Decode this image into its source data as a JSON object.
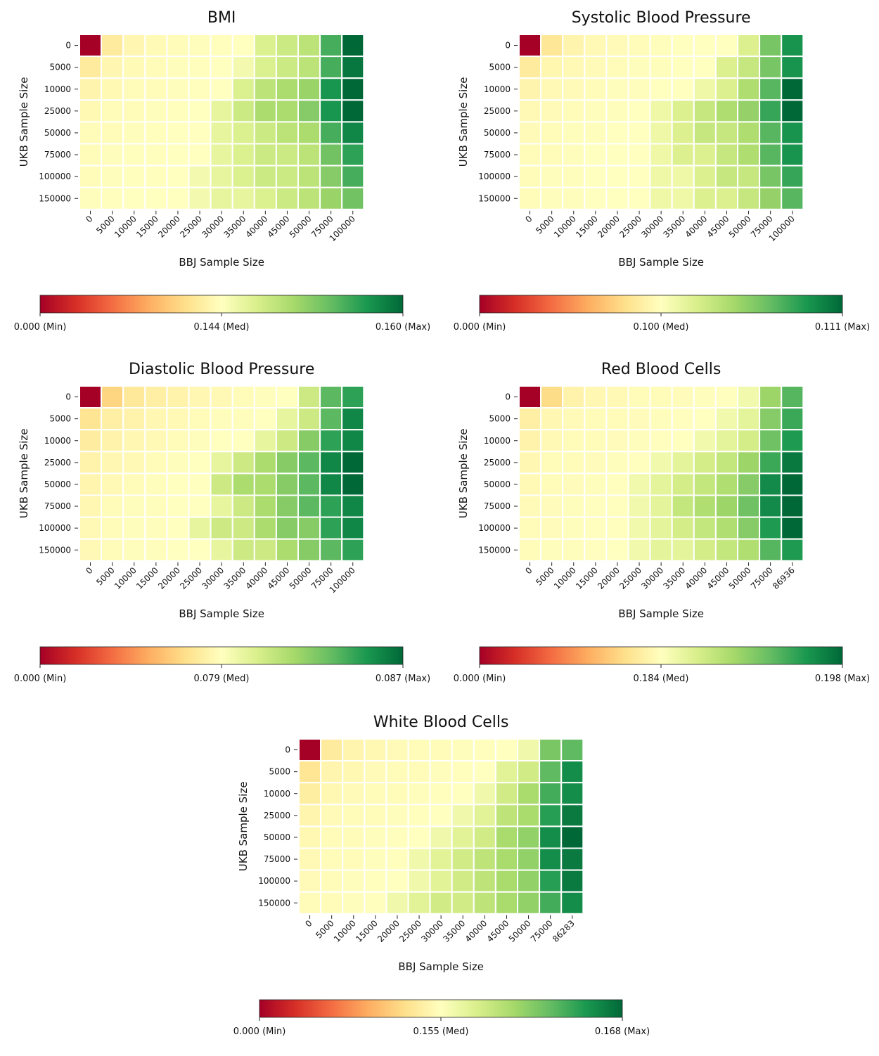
{
  "chart_data": [
    {
      "type": "heatmap",
      "title": "BMI",
      "xlabel": "BBJ Sample Size",
      "ylabel": "UKB Sample Size",
      "x_categories": [
        "0",
        "5000",
        "10000",
        "15000",
        "20000",
        "25000",
        "30000",
        "35000",
        "40000",
        "45000",
        "50000",
        "75000",
        "100000"
      ],
      "y_categories": [
        "0",
        "5000",
        "10000",
        "25000",
        "50000",
        "75000",
        "100000",
        "150000"
      ],
      "colorscale": {
        "min": 0.0,
        "median": 0.144,
        "max": 0.16,
        "tick_labels": [
          "0.000 (Min)",
          "0.144 (Med)",
          "0.160 (Max)"
        ]
      },
      "values": [
        [
          0.0,
          0.125,
          0.136,
          0.139,
          0.141,
          0.142,
          0.143,
          0.144,
          0.147,
          0.148,
          0.149,
          0.155,
          0.16
        ],
        [
          0.125,
          0.136,
          0.139,
          0.14,
          0.142,
          0.143,
          0.144,
          0.145,
          0.147,
          0.148,
          0.149,
          0.155,
          0.159
        ],
        [
          0.134,
          0.138,
          0.14,
          0.141,
          0.142,
          0.143,
          0.144,
          0.147,
          0.149,
          0.15,
          0.151,
          0.157,
          0.16
        ],
        [
          0.138,
          0.14,
          0.141,
          0.142,
          0.143,
          0.144,
          0.146,
          0.148,
          0.15,
          0.15,
          0.152,
          0.157,
          0.16
        ],
        [
          0.14,
          0.141,
          0.142,
          0.143,
          0.144,
          0.144,
          0.146,
          0.147,
          0.148,
          0.149,
          0.15,
          0.155,
          0.158
        ],
        [
          0.141,
          0.142,
          0.143,
          0.143,
          0.144,
          0.144,
          0.146,
          0.147,
          0.148,
          0.148,
          0.149,
          0.153,
          0.156
        ],
        [
          0.141,
          0.142,
          0.143,
          0.143,
          0.144,
          0.145,
          0.146,
          0.147,
          0.148,
          0.148,
          0.149,
          0.152,
          0.155
        ],
        [
          0.142,
          0.143,
          0.144,
          0.144,
          0.144,
          0.145,
          0.146,
          0.146,
          0.147,
          0.148,
          0.149,
          0.151,
          0.153
        ]
      ]
    },
    {
      "type": "heatmap",
      "title": "Systolic Blood Pressure",
      "xlabel": "BBJ Sample Size",
      "ylabel": "UKB Sample Size",
      "x_categories": [
        "0",
        "5000",
        "10000",
        "15000",
        "20000",
        "25000",
        "30000",
        "35000",
        "40000",
        "45000",
        "50000",
        "75000",
        "100000"
      ],
      "y_categories": [
        "0",
        "5000",
        "10000",
        "25000",
        "50000",
        "75000",
        "100000",
        "150000"
      ],
      "colorscale": {
        "min": 0.0,
        "median": 0.1,
        "max": 0.111,
        "tick_labels": [
          "0.000 (Min)",
          "0.100 (Med)",
          "0.111 (Max)"
        ]
      },
      "values": [
        [
          0.0,
          0.085,
          0.093,
          0.096,
          0.097,
          0.098,
          0.099,
          0.1,
          0.1,
          0.1,
          0.102,
          0.106,
          0.109
        ],
        [
          0.087,
          0.094,
          0.096,
          0.097,
          0.098,
          0.099,
          0.099,
          0.1,
          0.1,
          0.102,
          0.103,
          0.106,
          0.109
        ],
        [
          0.093,
          0.096,
          0.097,
          0.098,
          0.099,
          0.099,
          0.1,
          0.1,
          0.101,
          0.102,
          0.104,
          0.107,
          0.111
        ],
        [
          0.096,
          0.097,
          0.098,
          0.099,
          0.099,
          0.1,
          0.101,
          0.102,
          0.103,
          0.104,
          0.105,
          0.108,
          0.111
        ],
        [
          0.097,
          0.098,
          0.099,
          0.099,
          0.1,
          0.1,
          0.101,
          0.102,
          0.103,
          0.103,
          0.104,
          0.107,
          0.109
        ],
        [
          0.098,
          0.098,
          0.099,
          0.1,
          0.1,
          0.1,
          0.101,
          0.102,
          0.102,
          0.103,
          0.104,
          0.107,
          0.109
        ],
        [
          0.098,
          0.099,
          0.099,
          0.1,
          0.1,
          0.1,
          0.101,
          0.101,
          0.102,
          0.103,
          0.103,
          0.106,
          0.108
        ],
        [
          0.098,
          0.099,
          0.099,
          0.1,
          0.1,
          0.1,
          0.101,
          0.101,
          0.102,
          0.102,
          0.103,
          0.105,
          0.107
        ]
      ]
    },
    {
      "type": "heatmap",
      "title": "Diastolic Blood Pressure",
      "xlabel": "BBJ Sample Size",
      "ylabel": "UKB Sample Size",
      "x_categories": [
        "0",
        "5000",
        "10000",
        "15000",
        "20000",
        "25000",
        "30000",
        "35000",
        "40000",
        "45000",
        "50000",
        "75000",
        "100000"
      ],
      "y_categories": [
        "0",
        "5000",
        "10000",
        "25000",
        "50000",
        "75000",
        "100000",
        "150000"
      ],
      "colorscale": {
        "min": 0.0,
        "median": 0.079,
        "max": 0.087,
        "tick_labels": [
          "0.000 (Min)",
          "0.079 (Med)",
          "0.087 (Max)"
        ]
      },
      "values": [
        [
          0.0,
          0.06,
          0.068,
          0.071,
          0.073,
          0.075,
          0.076,
          0.077,
          0.078,
          0.079,
          0.081,
          0.084,
          0.085
        ],
        [
          0.066,
          0.071,
          0.073,
          0.075,
          0.076,
          0.077,
          0.078,
          0.078,
          0.079,
          0.08,
          0.081,
          0.084,
          0.086
        ],
        [
          0.07,
          0.073,
          0.075,
          0.076,
          0.077,
          0.078,
          0.079,
          0.079,
          0.08,
          0.081,
          0.083,
          0.085,
          0.086
        ],
        [
          0.073,
          0.075,
          0.076,
          0.077,
          0.078,
          0.079,
          0.08,
          0.081,
          0.082,
          0.083,
          0.084,
          0.086,
          0.087
        ],
        [
          0.074,
          0.076,
          0.077,
          0.078,
          0.079,
          0.079,
          0.081,
          0.082,
          0.082,
          0.083,
          0.084,
          0.086,
          0.087
        ],
        [
          0.075,
          0.077,
          0.078,
          0.078,
          0.079,
          0.079,
          0.08,
          0.081,
          0.082,
          0.083,
          0.084,
          0.085,
          0.086
        ],
        [
          0.076,
          0.077,
          0.078,
          0.078,
          0.079,
          0.08,
          0.081,
          0.081,
          0.082,
          0.083,
          0.083,
          0.085,
          0.086
        ],
        [
          0.076,
          0.077,
          0.078,
          0.078,
          0.079,
          0.079,
          0.08,
          0.081,
          0.081,
          0.082,
          0.083,
          0.084,
          0.085
        ]
      ]
    },
    {
      "type": "heatmap",
      "title": "Red Blood Cells",
      "xlabel": "BBJ Sample Size",
      "ylabel": "UKB Sample Size",
      "x_categories": [
        "0",
        "5000",
        "10000",
        "15000",
        "20000",
        "25000",
        "30000",
        "35000",
        "40000",
        "45000",
        "50000",
        "75000",
        "86936"
      ],
      "y_categories": [
        "0",
        "5000",
        "10000",
        "25000",
        "50000",
        "75000",
        "100000",
        "150000"
      ],
      "colorscale": {
        "min": 0.0,
        "median": 0.184,
        "max": 0.198,
        "tick_labels": [
          "0.000 (Min)",
          "0.184 (Med)",
          "0.198 (Max)"
        ]
      },
      "values": [
        [
          0.0,
          0.145,
          0.17,
          0.175,
          0.177,
          0.179,
          0.18,
          0.181,
          0.182,
          0.183,
          0.185,
          0.19,
          0.193
        ],
        [
          0.165,
          0.175,
          0.178,
          0.179,
          0.18,
          0.181,
          0.182,
          0.183,
          0.184,
          0.185,
          0.186,
          0.191,
          0.194
        ],
        [
          0.17,
          0.177,
          0.179,
          0.18,
          0.181,
          0.182,
          0.183,
          0.184,
          0.185,
          0.186,
          0.187,
          0.192,
          0.195
        ],
        [
          0.175,
          0.179,
          0.18,
          0.181,
          0.182,
          0.183,
          0.185,
          0.186,
          0.187,
          0.188,
          0.19,
          0.194,
          0.197
        ],
        [
          0.177,
          0.18,
          0.181,
          0.182,
          0.183,
          0.185,
          0.186,
          0.187,
          0.188,
          0.189,
          0.191,
          0.196,
          0.198
        ],
        [
          0.178,
          0.181,
          0.182,
          0.183,
          0.183,
          0.185,
          0.186,
          0.188,
          0.189,
          0.19,
          0.192,
          0.196,
          0.198
        ],
        [
          0.179,
          0.181,
          0.182,
          0.183,
          0.183,
          0.185,
          0.186,
          0.187,
          0.188,
          0.189,
          0.191,
          0.195,
          0.198
        ],
        [
          0.18,
          0.182,
          0.182,
          0.183,
          0.184,
          0.185,
          0.186,
          0.186,
          0.187,
          0.188,
          0.189,
          0.193,
          0.195
        ]
      ]
    },
    {
      "type": "heatmap",
      "title": "White Blood Cells",
      "xlabel": "BBJ Sample Size",
      "ylabel": "UKB Sample Size",
      "x_categories": [
        "0",
        "5000",
        "10000",
        "15000",
        "20000",
        "25000",
        "30000",
        "35000",
        "40000",
        "45000",
        "50000",
        "75000",
        "86283"
      ],
      "y_categories": [
        "0",
        "5000",
        "10000",
        "25000",
        "50000",
        "75000",
        "100000",
        "150000"
      ],
      "colorscale": {
        "min": 0.0,
        "median": 0.155,
        "max": 0.168,
        "tick_labels": [
          "0.000 (Min)",
          "0.155 (Med)",
          "0.168 (Max)"
        ]
      },
      "values": [
        [
          0.0,
          0.135,
          0.145,
          0.148,
          0.15,
          0.151,
          0.152,
          0.153,
          0.154,
          0.155,
          0.156,
          0.162,
          0.163
        ],
        [
          0.13,
          0.145,
          0.148,
          0.15,
          0.151,
          0.152,
          0.153,
          0.154,
          0.155,
          0.157,
          0.158,
          0.163,
          0.166
        ],
        [
          0.138,
          0.148,
          0.15,
          0.151,
          0.152,
          0.153,
          0.154,
          0.155,
          0.156,
          0.158,
          0.16,
          0.164,
          0.166
        ],
        [
          0.145,
          0.15,
          0.151,
          0.152,
          0.153,
          0.154,
          0.155,
          0.156,
          0.157,
          0.159,
          0.16,
          0.165,
          0.167
        ],
        [
          0.148,
          0.151,
          0.152,
          0.153,
          0.154,
          0.155,
          0.156,
          0.157,
          0.158,
          0.16,
          0.161,
          0.166,
          0.168
        ],
        [
          0.149,
          0.151,
          0.152,
          0.153,
          0.154,
          0.156,
          0.157,
          0.158,
          0.159,
          0.16,
          0.161,
          0.166,
          0.167
        ],
        [
          0.15,
          0.152,
          0.153,
          0.154,
          0.155,
          0.156,
          0.157,
          0.158,
          0.159,
          0.16,
          0.161,
          0.165,
          0.167
        ],
        [
          0.151,
          0.152,
          0.153,
          0.154,
          0.156,
          0.157,
          0.158,
          0.158,
          0.159,
          0.16,
          0.161,
          0.164,
          0.166
        ]
      ]
    }
  ]
}
